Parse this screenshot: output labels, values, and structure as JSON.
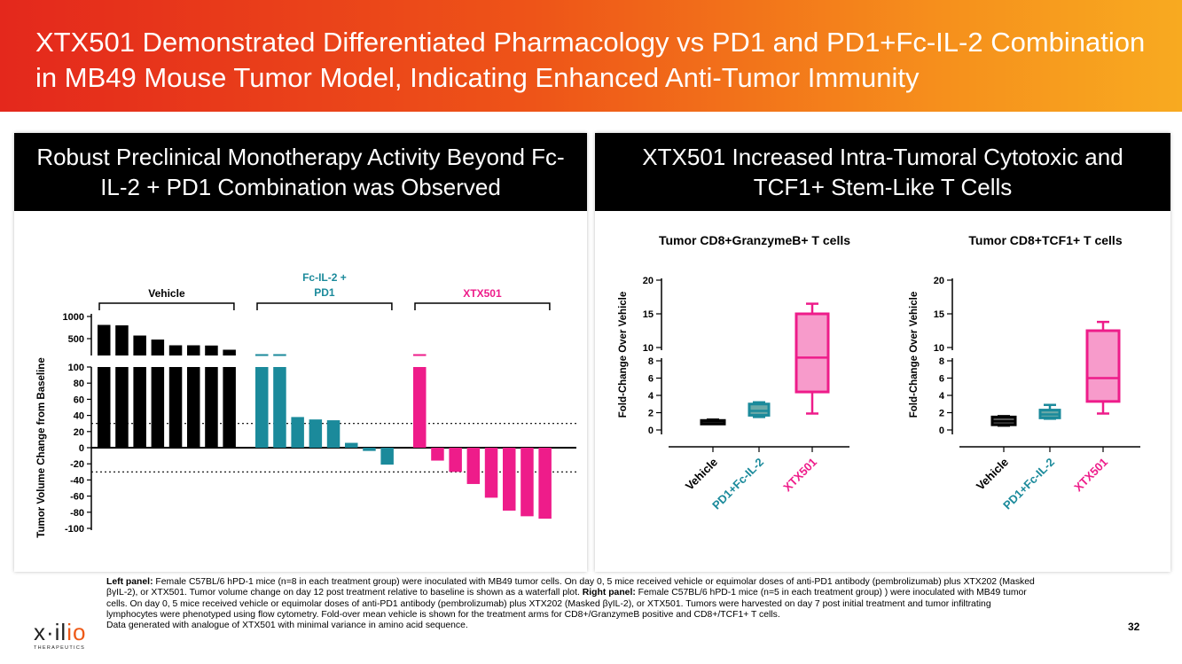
{
  "slide": {
    "title": "XTX501 Demonstrated Differentiated Pharmacology vs PD1 and PD1+Fc-IL-2 Combination in MB49 Mouse Tumor Model, Indicating Enhanced Anti-Tumor Immunity",
    "page_number": "32"
  },
  "left_panel": {
    "header": "Robust Preclinical Monotherapy Activity Beyond Fc-IL-2 + PD1 Combination was Observed"
  },
  "right_panel": {
    "header": "XTX501 Increased Intra-Tumoral Cytotoxic and TCF1+ Stem-Like T Cells"
  },
  "footnote": {
    "left_label": "Left panel:",
    "left_text": " Female C57BL/6 hPD-1 mice (n=8 in each treatment group) were inoculated with MB49 tumor cells. On day 0, 5 mice received vehicle or equimolar doses of anti-PD1 antibody (pembrolizumab) plus XTX202 (Masked   βγIL-2), or XTX501. Tumor volume change on day 12 post treatment relative to baseline is shown as a waterfall plot. ",
    "right_label": "Right panel:",
    "right_text": " Female C57BL/6 hPD-1 mice (n=5 in each treatment group) ) were inoculated with MB49 tumor cells. On day 0, 5 mice received vehicle or equimolar doses of anti-PD1 antibody (pembrolizumab) plus XTX202 (Masked βγIL-2), or XTX501. Tumors were harvested on day 7 post initial treatment and tumor infiltrating lymphocytes were phenotyped using flow cytometry. Fold-over mean vehicle is shown for the treatment arms for CD8+/GranzymeB positive and CD8+/TCF1+ T cells.",
    "last_line": "Data generated with analogue of XTX501 with minimal variance in amino acid sequence."
  },
  "logo": {
    "word_prefix": "x·il",
    "word_suffix": "io",
    "subtitle": "THERAPEUTICS"
  },
  "colors": {
    "vehicle": "#000000",
    "combo": "#1b8a9b",
    "xtx501": "#ee1c8a"
  },
  "chart_data": [
    {
      "type": "bar",
      "subtype": "waterfall-broken-axis",
      "ylabel": "Tumor Volume Change from Baseline",
      "y_ticks_lower": [
        "100",
        "80",
        "60",
        "40",
        "20",
        "0",
        "-20",
        "-40",
        "-60",
        "-80",
        "-100"
      ],
      "y_ticks_upper": [
        "1000",
        "500"
      ],
      "reference_lines": [
        30,
        -30
      ],
      "groups": [
        {
          "label": "Vehicle",
          "color": "#000000",
          "values": [
            810,
            800,
            570,
            480,
            350,
            350,
            345,
            250
          ]
        },
        {
          "label": "Fc-IL-2 + PD1",
          "color": "#1b8a9b",
          "values": [
            102,
            102,
            38,
            35,
            34,
            6,
            -4,
            -21
          ]
        },
        {
          "label": "XTX501",
          "color": "#ee1c8a",
          "values": [
            102,
            -16,
            -30,
            -45,
            -62,
            -78,
            -85,
            -88
          ]
        }
      ]
    },
    {
      "type": "box",
      "title": "Tumor CD8+GranzymeB+ T cells",
      "ylabel": "Fold-Change Over Vehicle",
      "y_ticks": [
        "20",
        "15",
        "10",
        "8",
        "6",
        "4",
        "2",
        "0"
      ],
      "categories": [
        "Vehicle",
        "PD1+Fc-IL-2",
        "XTX501"
      ],
      "boxes": [
        {
          "min": 0.7,
          "q1": 0.85,
          "median": 1.0,
          "q3": 1.1,
          "max": 1.2
        },
        {
          "min": 1.5,
          "q1": 1.7,
          "median": 2.2,
          "q3": 3.0,
          "max": 3.2
        },
        {
          "min": 1.9,
          "q1": 4.4,
          "median": 8.5,
          "q3": 15.0,
          "max": 16.5
        }
      ]
    },
    {
      "type": "box",
      "title": "Tumor CD8+TCF1+ T cells",
      "ylabel": "Fold-Change Over Vehicle",
      "y_ticks": [
        "20",
        "15",
        "10",
        "8",
        "6",
        "4",
        "2",
        "0"
      ],
      "categories": [
        "Vehicle",
        "PD1+Fc-IL-2",
        "XTX501"
      ],
      "boxes": [
        {
          "min": 0.5,
          "q1": 0.6,
          "median": 1.0,
          "q3": 1.5,
          "max": 1.6
        },
        {
          "min": 1.3,
          "q1": 1.4,
          "median": 1.8,
          "q3": 2.3,
          "max": 2.9
        },
        {
          "min": 1.9,
          "q1": 3.3,
          "median": 6.0,
          "q3": 12.5,
          "max": 13.8
        }
      ]
    }
  ]
}
